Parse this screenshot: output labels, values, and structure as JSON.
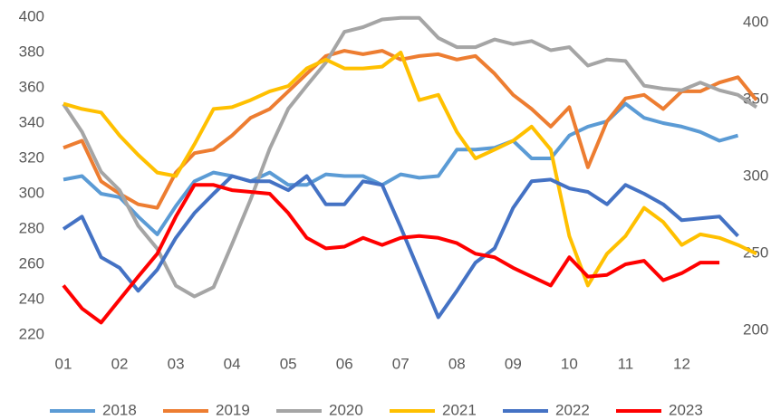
{
  "chart_data": {
    "type": "line",
    "x": [
      1,
      1.33,
      1.67,
      2,
      2.33,
      2.67,
      3,
      3.33,
      3.67,
      4,
      4.33,
      4.67,
      5,
      5.33,
      5.67,
      6,
      6.33,
      6.67,
      7,
      7.33,
      7.67,
      8,
      8.33,
      8.67,
      9,
      9.33,
      9.67,
      10,
      10.33,
      10.67,
      11,
      11.33,
      11.67,
      12,
      12.33,
      12.67,
      13,
      13.33
    ],
    "xlim": [
      1,
      13.33
    ],
    "xticks": [
      {
        "value": 1,
        "label": "01"
      },
      {
        "value": 2,
        "label": "02"
      },
      {
        "value": 3,
        "label": "03"
      },
      {
        "value": 4,
        "label": "04"
      },
      {
        "value": 5,
        "label": "05"
      },
      {
        "value": 6,
        "label": "06"
      },
      {
        "value": 7,
        "label": "07"
      },
      {
        "value": 8,
        "label": "08"
      },
      {
        "value": 9,
        "label": "09"
      },
      {
        "value": 10,
        "label": "10"
      },
      {
        "value": 11,
        "label": "11"
      },
      {
        "value": 12,
        "label": "12"
      }
    ],
    "ylim": [
      220,
      400
    ],
    "yticks": [
      220,
      240,
      260,
      280,
      300,
      320,
      340,
      360,
      380,
      400
    ],
    "y2lim": [
      197,
      403.5
    ],
    "y2ticks": [
      200,
      250,
      300,
      350,
      400
    ],
    "grid": false,
    "legend": "bottom",
    "series": [
      {
        "name": "2018",
        "color": "#5b9bd5",
        "values": [
          308,
          310,
          300,
          298,
          287,
          277,
          293,
          307,
          312,
          310,
          307,
          312,
          305,
          305,
          311,
          310,
          310,
          305,
          311,
          309,
          310,
          325,
          325,
          326,
          330,
          320,
          320,
          333,
          338,
          341,
          351,
          343,
          340,
          338,
          335,
          330,
          333,
          null
        ]
      },
      {
        "name": "2019",
        "color": "#ed7d31",
        "values": [
          326,
          330,
          307,
          300,
          294,
          292,
          312,
          323,
          325,
          333,
          343,
          348,
          358,
          368,
          378,
          381,
          379,
          381,
          376,
          378,
          379,
          376,
          378,
          368,
          356,
          348,
          338,
          349,
          315,
          341,
          354,
          356,
          348,
          358,
          358,
          363,
          366,
          353
        ]
      },
      {
        "name": "2020",
        "color": "#a5a5a5",
        "axis": "y2",
        "values": [
          347,
          329,
          303,
          291,
          268,
          253,
          229,
          222,
          228,
          256,
          285,
          318,
          344,
          359,
          374,
          394,
          397,
          402,
          403,
          403,
          390,
          384,
          384,
          389,
          386,
          388,
          382,
          384,
          372,
          376,
          375,
          359,
          357,
          356,
          361,
          356,
          353,
          345
        ]
      },
      {
        "name": "2021",
        "color": "#ffc000",
        "values": [
          351,
          348,
          346,
          333,
          322,
          312,
          310,
          328,
          348,
          349,
          353,
          358,
          361,
          371,
          376,
          371,
          371,
          372,
          380,
          353,
          356,
          335,
          320,
          325,
          330,
          338,
          325,
          276,
          248,
          266,
          276,
          292,
          284,
          271,
          277,
          275,
          271,
          266
        ]
      },
      {
        "name": "2022",
        "color": "#4472c4",
        "values": [
          280,
          287,
          264,
          258,
          245,
          257,
          275,
          289,
          300,
          310,
          307,
          307,
          302,
          310,
          294,
          294,
          307,
          305,
          281,
          256,
          230,
          245,
          261,
          269,
          292,
          307,
          308,
          303,
          301,
          294,
          305,
          300,
          294,
          285,
          286,
          287,
          276,
          null
        ]
      },
      {
        "name": "2023",
        "color": "#ff0000",
        "values": [
          248,
          235,
          227,
          240,
          253,
          266,
          287,
          305,
          305,
          302,
          301,
          300,
          289,
          275,
          269,
          270,
          275,
          271,
          275,
          276,
          275,
          272,
          266,
          264,
          258,
          253,
          248,
          264,
          253,
          254,
          260,
          262,
          251,
          255,
          261,
          261,
          null,
          null
        ]
      }
    ]
  }
}
